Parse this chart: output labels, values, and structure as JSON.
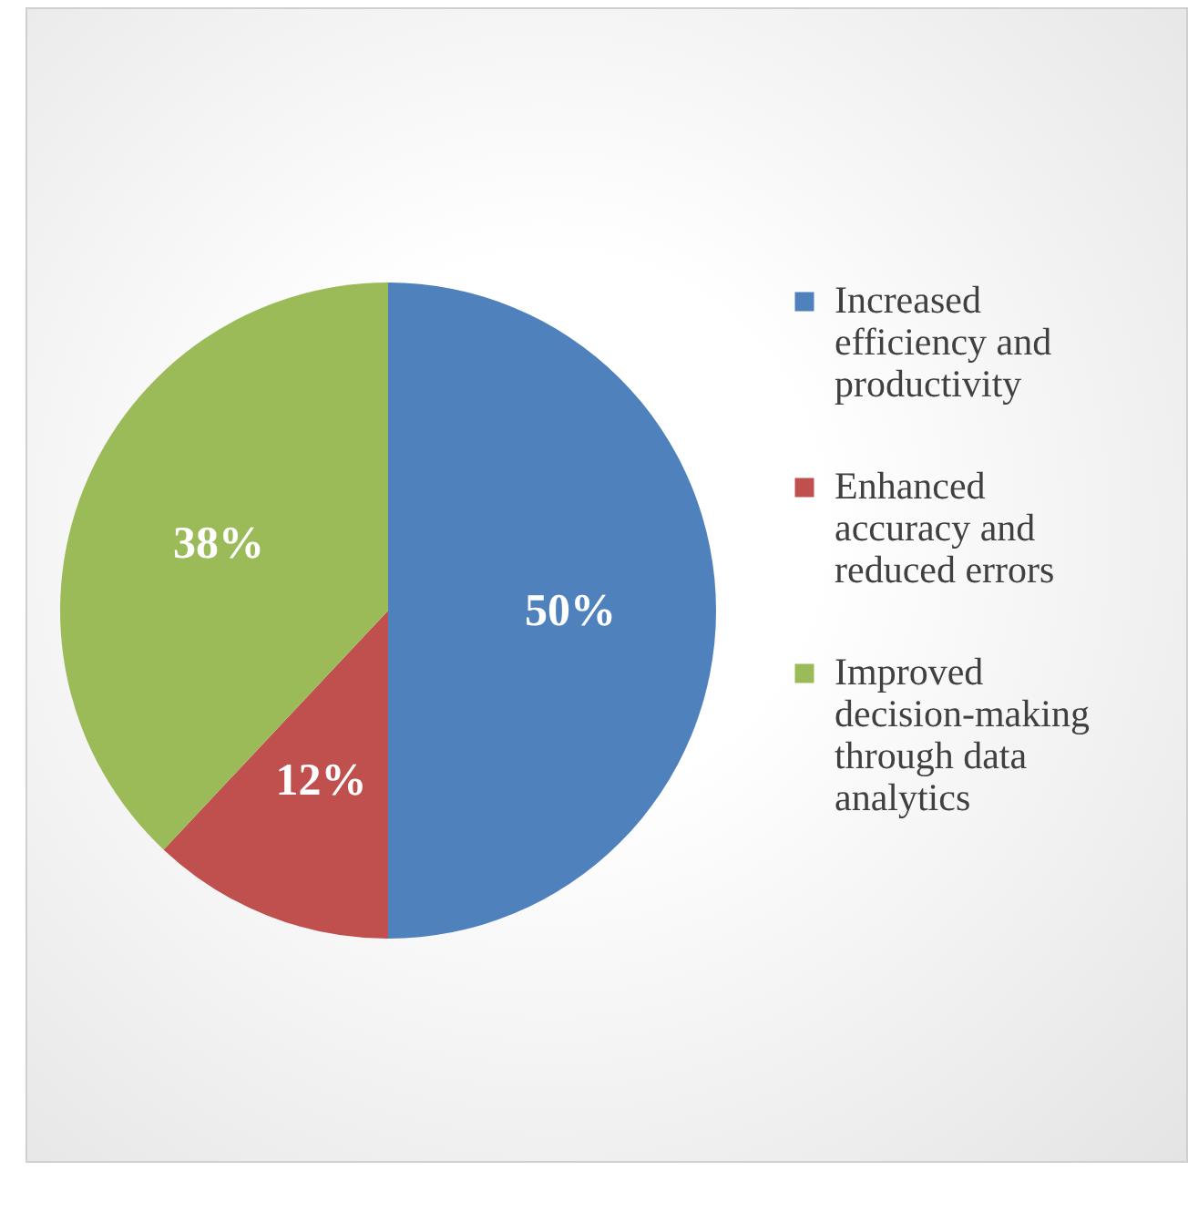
{
  "chart_data": {
    "type": "pie",
    "categories": [
      "Increased efficiency and productivity",
      "Enhanced accuracy and reduced errors",
      "Improved decision-making through data analytics"
    ],
    "values": [
      50,
      12,
      38
    ],
    "colors": [
      "#4f81bd",
      "#c0504d",
      "#9bbb59"
    ],
    "value_labels": [
      "50%",
      "12%",
      "38%"
    ],
    "legend": "right"
  }
}
